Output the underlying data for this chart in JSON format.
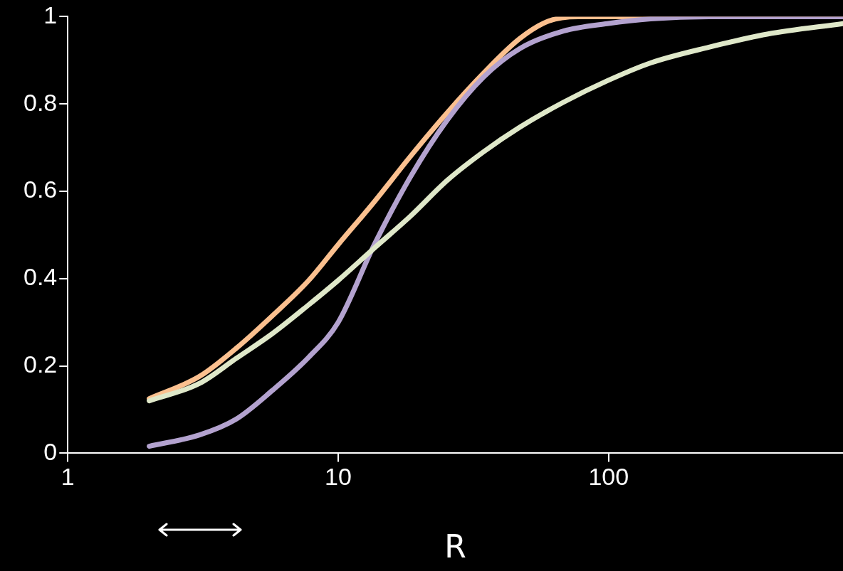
{
  "chart_data": {
    "type": "line",
    "xlabel": "R",
    "log": "x",
    "xlim": [
      1,
      736
    ],
    "ylim": [
      0,
      1
    ],
    "xticks": [
      1,
      10,
      100
    ],
    "yticks": [
      0,
      0.2,
      0.4,
      0.6,
      0.8,
      1
    ],
    "series": [
      {
        "color": "#dfe8c9",
        "x": [
          2,
          3.07,
          4.19,
          5.71,
          7.78,
          10,
          13.6,
          18.5,
          25.3,
          34.4,
          47,
          68.1,
          98.8,
          143,
          235,
          386,
          736
        ],
        "values": [
          0.12,
          0.16,
          0.217,
          0.274,
          0.34,
          0.396,
          0.47,
          0.543,
          0.625,
          0.69,
          0.747,
          0.804,
          0.853,
          0.894,
          0.93,
          0.96,
          0.984
        ]
      },
      {
        "color": "#b3a2cf",
        "x": [
          2,
          3.07,
          4.19,
          5.71,
          7.78,
          10,
          13.6,
          18.5,
          25.3,
          34.4,
          47,
          68.1,
          98.8,
          143,
          235,
          736
        ],
        "values": [
          0.016,
          0.042,
          0.078,
          0.144,
          0.22,
          0.3,
          0.478,
          0.633,
          0.763,
          0.861,
          0.927,
          0.967,
          0.984,
          0.995,
          1,
          1
        ]
      },
      {
        "color": "#fbc08f",
        "x": [
          2,
          3.07,
          4.19,
          5.71,
          7.78,
          10,
          13.6,
          18.5,
          25.3,
          34.4,
          47,
          60.1,
          77.1,
          736
        ],
        "values": [
          0.125,
          0.176,
          0.24,
          0.315,
          0.396,
          0.478,
          0.576,
          0.68,
          0.78,
          0.87,
          0.95,
          0.99,
          1,
          1
        ]
      }
    ]
  }
}
